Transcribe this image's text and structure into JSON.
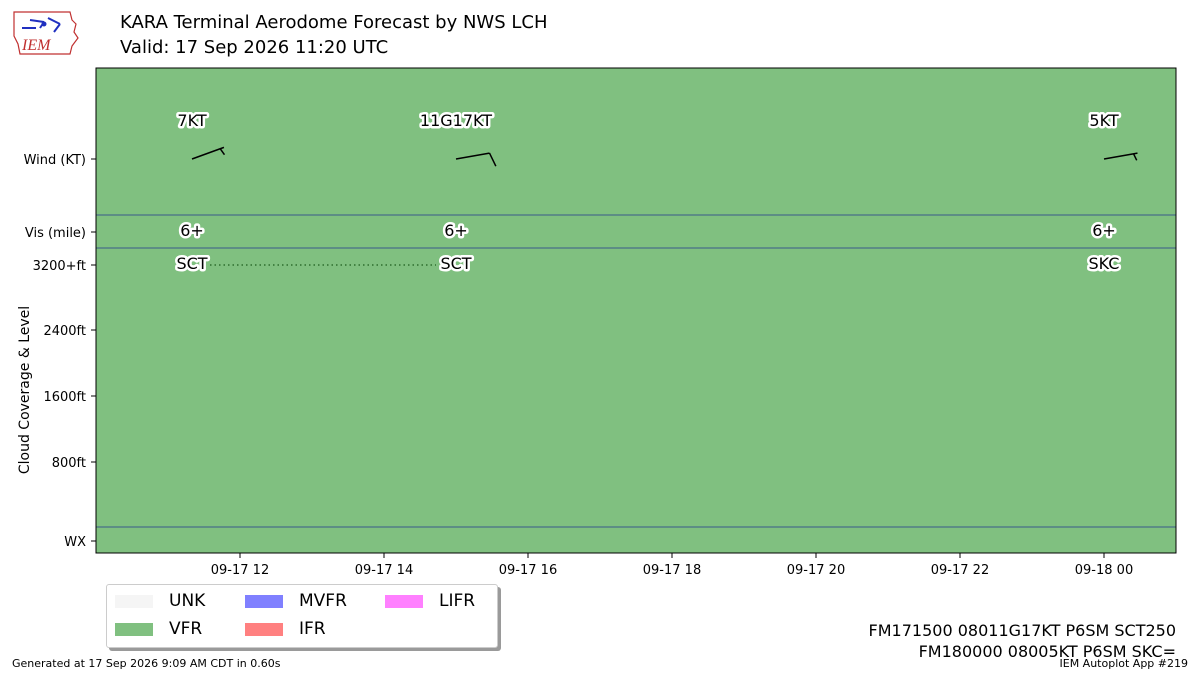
{
  "header": {
    "title": "KARA Terminal Aerodome Forecast by NWS LCH",
    "subtitle": "Valid: 17 Sep 2026 11:20 UTC"
  },
  "logo": {
    "text": "IEM",
    "icon": "iem-iowa-logo"
  },
  "colors": {
    "UNK": "#f5f5f5",
    "VFR": "#80c080",
    "MVFR": "#8080ff",
    "IFR": "#ff8080",
    "LIFR": "#ff80ff",
    "band_line": "#3a5a8a"
  },
  "legend": [
    {
      "label": "UNK",
      "color": "#f5f5f5"
    },
    {
      "label": "MVFR",
      "color": "#8080ff"
    },
    {
      "label": "LIFR",
      "color": "#ff80ff"
    },
    {
      "label": "VFR",
      "color": "#80c080"
    },
    {
      "label": "IFR",
      "color": "#ff8080"
    }
  ],
  "chart_data": {
    "type": "timeline",
    "xlim": [
      "2026-09-17 10:00",
      "2026-09-18 01:00"
    ],
    "x_ticks": [
      {
        "t": "2026-09-17 12:00",
        "label": "09-17 12"
      },
      {
        "t": "2026-09-17 14:00",
        "label": "09-17 14"
      },
      {
        "t": "2026-09-17 16:00",
        "label": "09-17 16"
      },
      {
        "t": "2026-09-17 18:00",
        "label": "09-17 18"
      },
      {
        "t": "2026-09-17 20:00",
        "label": "09-17 20"
      },
      {
        "t": "2026-09-17 22:00",
        "label": "09-17 22"
      },
      {
        "t": "2026-09-18 00:00",
        "label": "09-18 00"
      }
    ],
    "y_ticks": [
      "Wind (KT)",
      "Vis (mile)",
      "3200+ft",
      "2400ft",
      "1600ft",
      "800ft",
      "WX"
    ],
    "ylabel": "Cloud Coverage & Level",
    "category": "VFR",
    "forecasts": [
      {
        "t": "2026-09-17 11:20",
        "wind_label": "7KT",
        "wind_dir_deg": 70,
        "wind_speed_kt": 7,
        "vis_label": "6+",
        "cloud_label": "SCT"
      },
      {
        "t": "2026-09-17 15:00",
        "wind_label": "11G17KT",
        "wind_dir_deg": 80,
        "wind_speed_kt": 11,
        "vis_label": "6+",
        "cloud_label": "SCT"
      },
      {
        "t": "2026-09-18 00:00",
        "wind_label": "5KT",
        "wind_dir_deg": 80,
        "wind_speed_kt": 5,
        "vis_label": "6+",
        "cloud_label": "SKC"
      }
    ],
    "cloud_level_line": {
      "from": "2026-09-17 11:20",
      "to": "2026-09-17 15:00",
      "level": "3200+ft"
    }
  },
  "taf": {
    "line1": "FM171500 08011G17KT P6SM SCT250",
    "line2": "FM180000 08005KT P6SM SKC="
  },
  "footer": {
    "generated": "Generated at 17 Sep 2026 9:09 AM CDT in 0.60s",
    "app": "IEM Autoplot App #219"
  }
}
